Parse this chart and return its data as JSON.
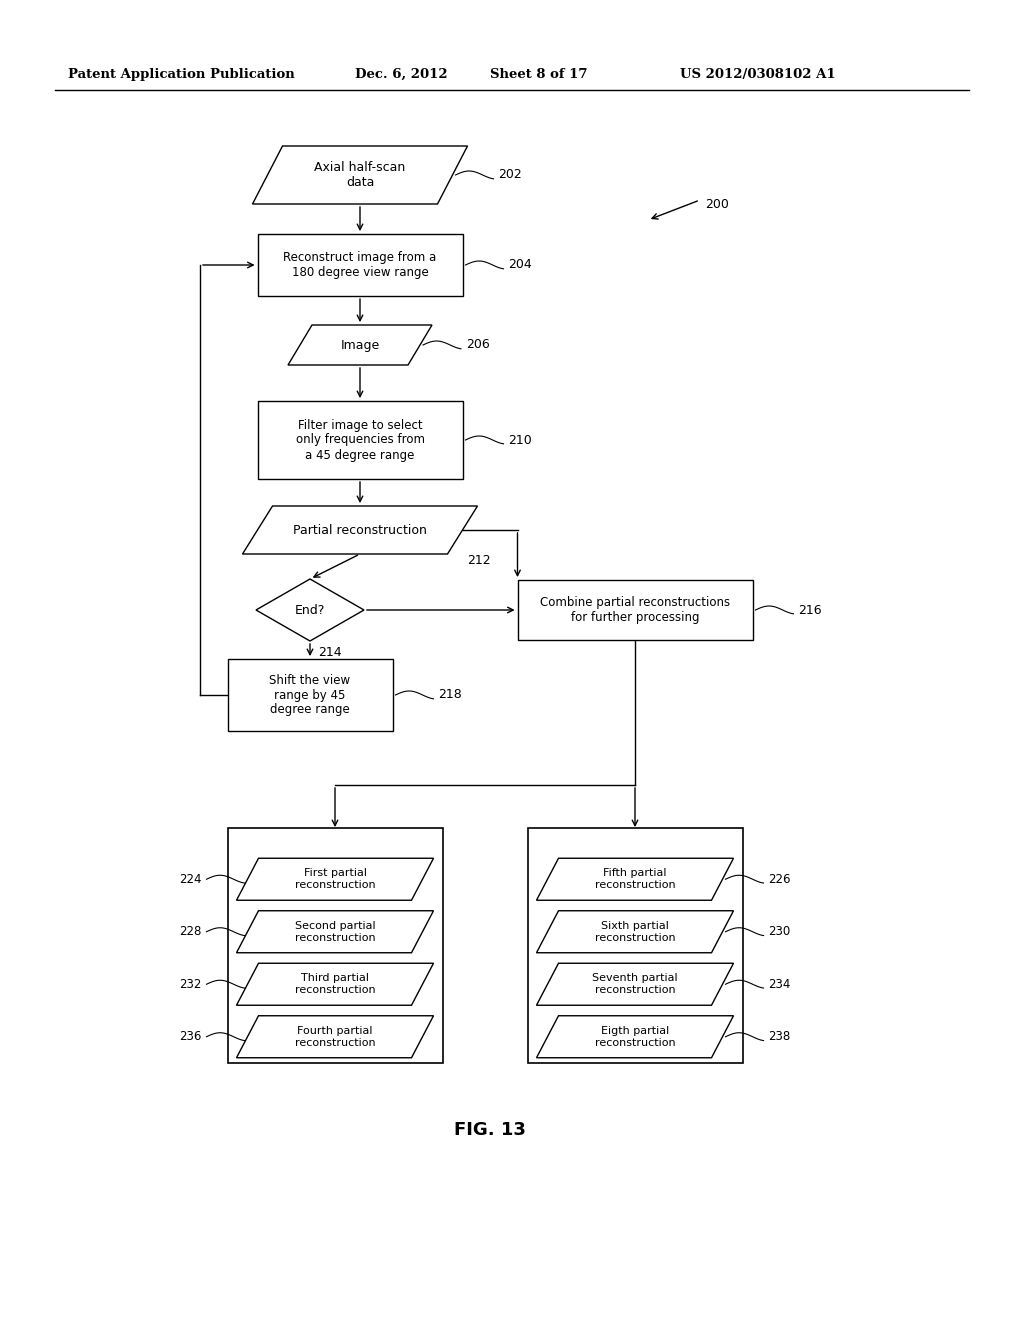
{
  "title_header": "Patent Application Publication",
  "title_date": "Dec. 6, 2012",
  "title_sheet": "Sheet 8 of 17",
  "title_patent": "US 2012/0308102 A1",
  "fig_label": "FIG. 13",
  "background_color": "#ffffff",
  "text_color": "#000000",
  "left_texts": [
    "First partial\nreconstruction",
    "Second partial\nreconstruction",
    "Third partial\nreconstruction",
    "Fourth partial\nreconstruction"
  ],
  "left_refs": [
    "224",
    "228",
    "232",
    "236"
  ],
  "right_texts": [
    "Fifth partial\nreconstruction",
    "Sixth partial\nreconstruction",
    "Seventh partial\nreconstruction",
    "Eigth partial\nreconstruction"
  ],
  "right_refs": [
    "226",
    "230",
    "234",
    "238"
  ]
}
